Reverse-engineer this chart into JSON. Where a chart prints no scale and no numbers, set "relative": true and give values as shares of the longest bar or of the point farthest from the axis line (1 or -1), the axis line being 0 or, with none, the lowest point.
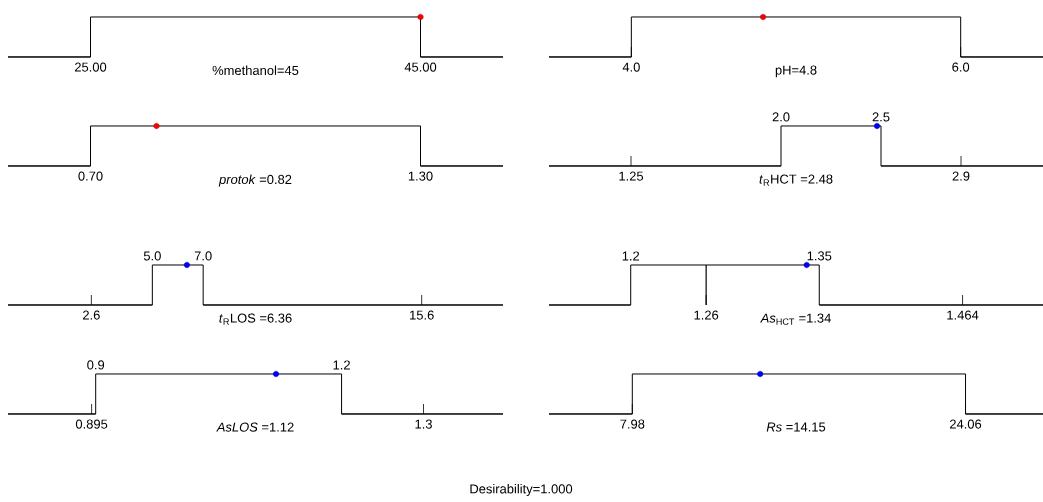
{
  "chart_data": [
    {
      "type": "line",
      "relative": true,
      "xlabel": "%methanol=45",
      "xlim": [
        20,
        50
      ],
      "xticks": [
        {
          "value": 25,
          "label": "25.00"
        },
        {
          "value": 45,
          "label": "45.00"
        }
      ],
      "series": [
        {
          "type": "line",
          "color": "#000000",
          "x": [
            20,
            25,
            25,
            45,
            45,
            50
          ],
          "values": [
            0,
            0,
            1,
            1,
            0,
            0
          ]
        },
        {
          "type": "scatter",
          "color": "#ff0000",
          "x": [
            45
          ],
          "values": [
            1
          ]
        }
      ]
    },
    {
      "type": "line",
      "relative": true,
      "xlabel": "pH=4.8",
      "xlim": [
        3.5,
        6.5
      ],
      "xticks": [
        {
          "value": 4,
          "label": "4.0"
        },
        {
          "value": 6,
          "label": "6.0"
        }
      ],
      "series": [
        {
          "type": "line",
          "color": "#000000",
          "x": [
            3.5,
            4,
            4,
            6,
            6,
            6.5
          ],
          "values": [
            0,
            0,
            1,
            1,
            0,
            0
          ]
        },
        {
          "type": "scatter",
          "color": "#ff0000",
          "x": [
            4.8
          ],
          "values": [
            1
          ]
        }
      ]
    },
    {
      "type": "line",
      "relative": true,
      "xlabel": "*protok* =0.82",
      "xlim": [
        0.55,
        1.45
      ],
      "xticks": [
        {
          "value": 0.7,
          "label": "0.70"
        },
        {
          "value": 1.3,
          "label": "1.30"
        }
      ],
      "series": [
        {
          "type": "line",
          "color": "#000000",
          "x": [
            0.55,
            0.7,
            0.7,
            1.3,
            1.3,
            1.45
          ],
          "values": [
            0,
            0,
            1,
            1,
            0,
            0
          ]
        },
        {
          "type": "scatter",
          "color": "#ff0000",
          "x": [
            0.82
          ],
          "values": [
            1
          ]
        }
      ]
    },
    {
      "type": "line",
      "relative": true,
      "xlabel": "*t*$_{R}$HCT =2.48",
      "xlim": [
        0.84,
        3.31
      ],
      "xticks": [
        1.25,
        2.9
      ],
      "x2lim": [
        0.84,
        3.31
      ],
      "x2ticks": [
        {
          "value": 2,
          "label": "2.0"
        },
        2.5
      ],
      "series": [
        {
          "type": "line",
          "color": "#000000",
          "x": [
            0.84,
            2,
            2,
            2.5,
            2.5,
            3.31
          ],
          "values": [
            0,
            0,
            1,
            1,
            0,
            0
          ]
        },
        {
          "type": "scatter",
          "color": "#0000ff",
          "x": [
            2.48
          ],
          "values": [
            1
          ]
        }
      ]
    },
    {
      "type": "line",
      "relative": true,
      "xlabel": "*t*$_{R}$LOS =6.36",
      "xlim": [
        -0.68,
        18.8
      ],
      "xticks": [
        2.6,
        15.6
      ],
      "x2lim": [
        -0.68,
        18.8
      ],
      "x2ticks": [
        {
          "value": 5,
          "label": "5.0"
        },
        {
          "value": 7,
          "label": "7.0"
        }
      ],
      "series": [
        {
          "type": "line",
          "color": "#000000",
          "x": [
            -0.68,
            5,
            5,
            7,
            7,
            18.8
          ],
          "values": [
            0,
            0,
            1,
            1,
            0,
            0
          ]
        },
        {
          "type": "scatter",
          "color": "#0000ff",
          "x": [
            6.36
          ],
          "values": [
            1
          ]
        }
      ]
    },
    {
      "type": "line",
      "relative": true,
      "xlabel": "*As*$_{HCT}$ =1.34",
      "xlim": [
        1.135,
        1.528
      ],
      "xticks": [
        1.26,
        1.464
      ],
      "x2lim": [
        1.135,
        1.528
      ],
      "x2ticks": [
        1.2,
        1.35
      ],
      "ref_lines": [
        {
          "axis": "x",
          "value": 1.26,
          "color": "#000000"
        }
      ],
      "series": [
        {
          "type": "line",
          "color": "#000000",
          "x": [
            1.135,
            1.2,
            1.2,
            1.35,
            1.35,
            1.528
          ],
          "values": [
            0,
            0,
            1,
            1,
            0,
            0
          ]
        },
        {
          "type": "scatter",
          "color": "#0000ff",
          "x": [
            1.34
          ],
          "values": [
            1
          ]
        }
      ]
    },
    {
      "type": "line",
      "relative": true,
      "xlabel": "*AsLOS* =1.12",
      "xlim": [
        0.793,
        1.397
      ],
      "xticks": [
        0.895,
        1.3
      ],
      "x2lim": [
        0.793,
        1.397
      ],
      "x2ticks": [
        0.9,
        1.2
      ],
      "series": [
        {
          "type": "line",
          "color": "#000000",
          "x": [
            0.793,
            0.9,
            0.9,
            1.2,
            1.2,
            1.397
          ],
          "values": [
            0,
            0,
            1,
            1,
            0,
            0
          ]
        },
        {
          "type": "scatter",
          "color": "#0000ff",
          "x": [
            1.12
          ],
          "values": [
            1
          ]
        }
      ]
    },
    {
      "type": "line",
      "relative": true,
      "xlabel": "*Rs* =14.15",
      "xlim": [
        3.96,
        27.8
      ],
      "xticks": [
        7.98,
        24.06
      ],
      "series": [
        {
          "type": "line",
          "color": "#000000",
          "x": [
            3.96,
            7.98,
            7.98,
            24.06,
            24.06,
            27.8
          ],
          "values": [
            0,
            0,
            1,
            1,
            0,
            0
          ]
        },
        {
          "type": "scatter",
          "color": "#0000ff",
          "x": [
            14.15
          ],
          "values": [
            1
          ]
        }
      ]
    },
    {
      "type": "other",
      "title": "Desirability=1.000"
    }
  ]
}
